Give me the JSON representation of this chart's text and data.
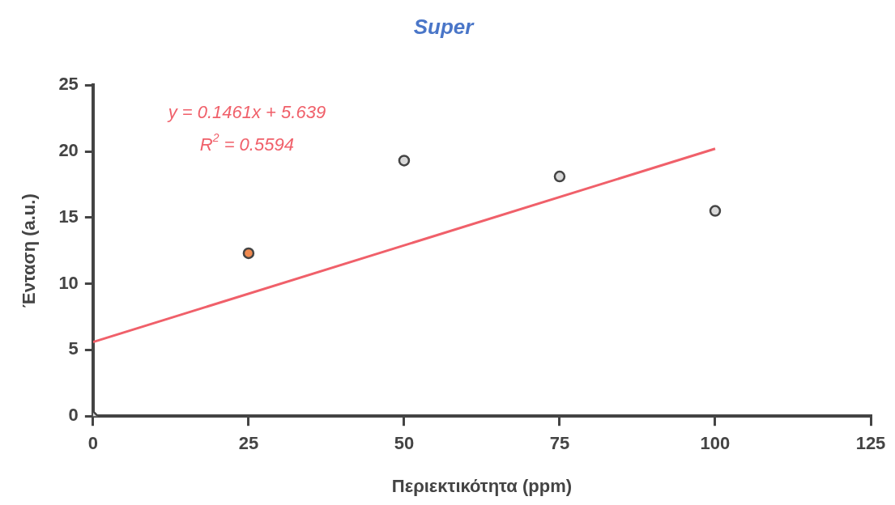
{
  "chart_data": {
    "type": "scatter",
    "title": "Super",
    "xlabel": "Περιεκτικότητα (ppm)",
    "ylabel": "Ένταση (a.u.)",
    "xlim": [
      0,
      125
    ],
    "xticks": [
      0,
      25,
      50,
      75,
      100,
      125
    ],
    "ylim": [
      0,
      25
    ],
    "yticks": [
      0,
      5,
      10,
      15,
      20,
      25
    ],
    "grid": false,
    "legend": false,
    "annotations": [
      "y = 0.1461x + 5.639",
      "R$^{2}$ = 0.5594"
    ],
    "series": [
      {
        "marker": "diamond",
        "x": [
          0
        ],
        "values": [
          0
        ],
        "color": "#d9d9d9"
      },
      {
        "marker": "circle",
        "x": [
          25,
          50,
          75,
          100
        ],
        "values": [
          12.3,
          19.3,
          18.1,
          15.5
        ],
        "colors": [
          "#f08a50",
          "#d9d9d9",
          "#d9d9d9",
          "#d9d9d9"
        ]
      },
      {
        "type": "line",
        "marker": "none",
        "x": [
          0,
          100
        ],
        "values": [
          5.6,
          20.2
        ],
        "color": "#f0606a"
      }
    ]
  }
}
